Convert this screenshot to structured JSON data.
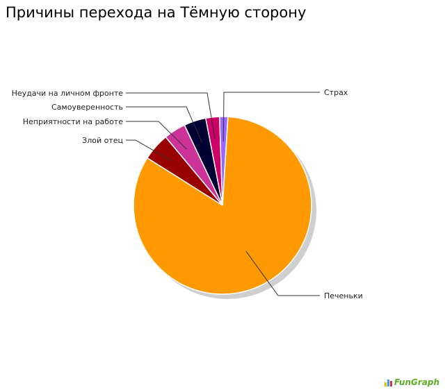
{
  "chart_data": {
    "type": "pie",
    "title": "Причины перехода на Тёмную сторону",
    "slices": [
      {
        "label": "Печеньки",
        "value": 83.0,
        "color": "#ff9900"
      },
      {
        "label": "Злой отец",
        "value": 5.0,
        "color": "#990000"
      },
      {
        "label": "Неприятности на работе",
        "value": 4.0,
        "color": "#cc3399"
      },
      {
        "label": "Самоуверенность",
        "value": 4.0,
        "color": "#000033"
      },
      {
        "label": "Неудачи на личном фронте",
        "value": 2.5,
        "color": "#cc0066"
      },
      {
        "label": "Страх",
        "value": 1.5,
        "color": "#9966ff"
      }
    ]
  },
  "watermark": {
    "text": "FunGraph",
    "bar_colors": [
      "#f2b705",
      "#3aa3d9",
      "#d9304f"
    ]
  }
}
